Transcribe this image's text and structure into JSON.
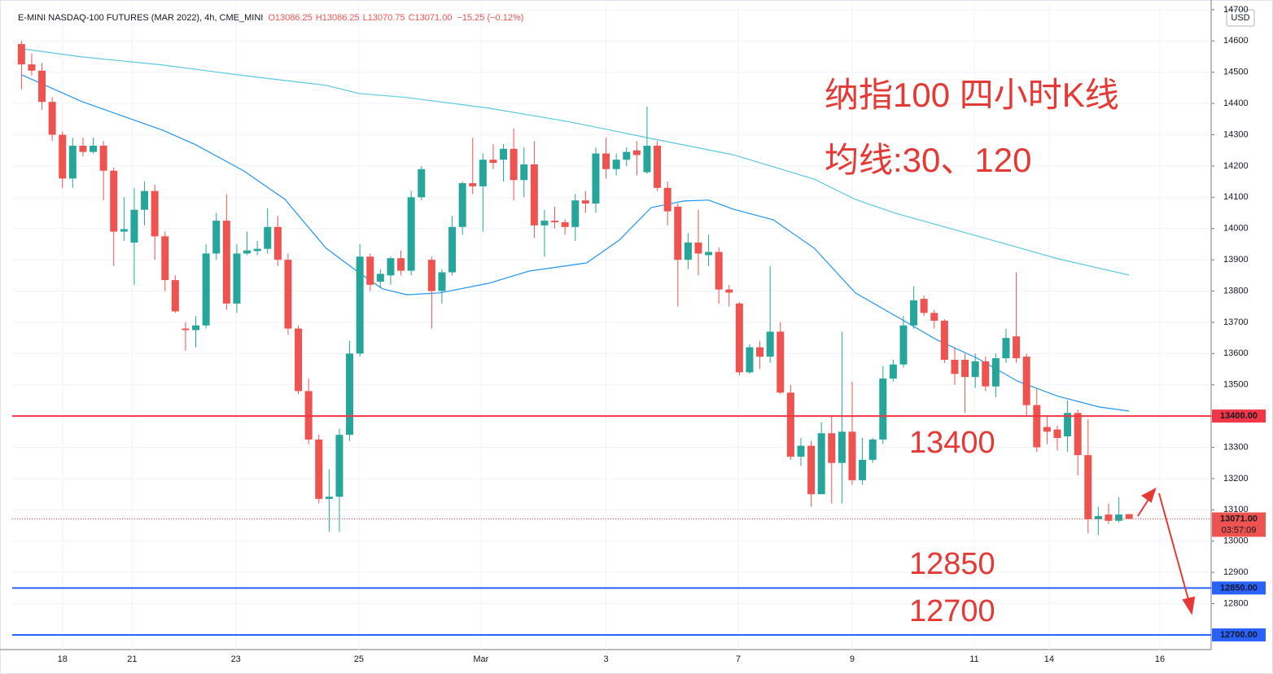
{
  "chart_data": {
    "type": "candlestick",
    "symbol": "E-MINI NASDAQ-100 FUTURES (MAR 2022), 4h, CME_MINI",
    "ohlc_header": [
      "O13086.25",
      "H13086.25",
      "L13070.75",
      "C13071.00",
      "−15.25 (−0.12%)"
    ],
    "title": "纳指100 四小时K线",
    "subtitle": "均线:30、120",
    "currency": "USD",
    "up_color": "#26a69a",
    "down_color": "#ef5350",
    "open": [
      14590,
      14525,
      14505,
      14405,
      14300,
      14160,
      14265,
      14245,
      14265,
      14185,
      13990,
      13955,
      14060,
      14120,
      13975,
      13835,
      13680,
      13675,
      13690,
      13920,
      14025,
      13760,
      13920,
      13928,
      13935,
      14005,
      13900,
      13680,
      13480,
      13325,
      13135,
      13142,
      13340,
      13600,
      13910,
      13830,
      13850,
      13905,
      13865,
      14100,
      13900,
      13800,
      13860,
      14005,
      14145,
      14135,
      14220,
      14220,
      14255,
      14155,
      14205,
      14010,
      14025,
      14020,
      14005,
      14090,
      14080,
      14240,
      14190,
      14220,
      14250,
      14180,
      14265,
      14130,
      14070,
      13900,
      13955,
      13915,
      13925,
      13805,
      13760,
      13540,
      13620,
      13590,
      13670,
      13475,
      13270,
      13305,
      13150,
      13345,
      13250,
      13350,
      13195,
      13260,
      13325,
      13520,
      13565,
      13690,
      13775,
      13730,
      13705,
      13580,
      13580,
      13525,
      13575,
      13495,
      13585,
      13655,
      13590,
      13435,
      13365,
      13357,
      13335,
      13410,
      13275,
      13070,
      13085,
      13065,
      13086.25
    ],
    "high": [
      14600,
      14560,
      14530,
      14420,
      14310,
      14290,
      14290,
      14290,
      14280,
      14195,
      14100,
      14130,
      14150,
      14140,
      13990,
      13850,
      13700,
      13720,
      13950,
      14050,
      14110,
      13950,
      13990,
      13960,
      14065,
      14040,
      13920,
      13690,
      13520,
      13340,
      13230,
      13360,
      13640,
      13950,
      13920,
      13870,
      13910,
      13930,
      14120,
      14200,
      13910,
      13870,
      14040,
      14150,
      14290,
      14240,
      14270,
      14270,
      14320,
      14260,
      14280,
      14060,
      14070,
      14030,
      14110,
      14120,
      14260,
      14290,
      14240,
      14260,
      14280,
      14390,
      14280,
      14150,
      14080,
      13985,
      14060,
      13980,
      13940,
      13820,
      13765,
      13630,
      13640,
      13880,
      13700,
      13500,
      13330,
      13320,
      13380,
      13400,
      13670,
      13510,
      13330,
      13330,
      13560,
      13580,
      13720,
      13815,
      13785,
      13740,
      13710,
      13620,
      13600,
      13600,
      13590,
      13600,
      13680,
      13860,
      13600,
      13490,
      13400,
      13370,
      13450,
      13420,
      13390,
      13110,
      13120,
      13140,
      13086.25
    ],
    "low": [
      14445,
      14490,
      14380,
      14280,
      14130,
      14130,
      14230,
      14240,
      14090,
      13880,
      13960,
      13820,
      14010,
      13900,
      13800,
      13730,
      13610,
      13620,
      13680,
      13900,
      13740,
      13730,
      13915,
      13915,
      13920,
      13880,
      13660,
      13470,
      13310,
      13120,
      13030,
      13030,
      13320,
      13590,
      13800,
      13810,
      13820,
      13850,
      13850,
      14090,
      13680,
      13760,
      13850,
      13980,
      14110,
      13990,
      14190,
      14150,
      14090,
      14100,
      13970,
      13910,
      14000,
      13980,
      13960,
      14050,
      14050,
      14160,
      14170,
      14200,
      14170,
      14175,
      14120,
      14010,
      13750,
      13870,
      13850,
      13880,
      13760,
      13750,
      13530,
      13535,
      13550,
      13570,
      13470,
      13260,
      13240,
      13110,
      13150,
      13120,
      13120,
      13180,
      13180,
      13250,
      13310,
      13510,
      13555,
      13680,
      13720,
      13680,
      13570,
      13500,
      13410,
      13490,
      13480,
      13460,
      13570,
      13570,
      13400,
      13285,
      13310,
      13290,
      13285,
      13210,
      13025,
      13020,
      13055,
      13060,
      13070.75
    ],
    "close": [
      14525,
      14505,
      14405,
      14300,
      14160,
      14265,
      14245,
      14265,
      14185,
      13990,
      13998,
      14060,
      14120,
      13975,
      13835,
      13735,
      13675,
      13690,
      13920,
      14025,
      13760,
      13920,
      13930,
      13935,
      14005,
      13900,
      13680,
      13480,
      13325,
      13135,
      13142,
      13340,
      13600,
      13910,
      13820,
      13855,
      13905,
      13865,
      14100,
      14190,
      13800,
      13860,
      14005,
      14145,
      14135,
      14220,
      14210,
      14255,
      14155,
      14205,
      14010,
      14025,
      14020,
      14005,
      14090,
      14080,
      14240,
      14190,
      14220,
      14245,
      14235,
      14265,
      14130,
      14055,
      13900,
      13955,
      13920,
      13925,
      13805,
      13795,
      13540,
      13620,
      13590,
      13670,
      13475,
      13270,
      13305,
      13150,
      13345,
      13250,
      13350,
      13195,
      13260,
      13325,
      13520,
      13565,
      13690,
      13770,
      13730,
      13705,
      13580,
      13535,
      13525,
      13575,
      13495,
      13585,
      13650,
      13585,
      13435,
      13300,
      13350,
      13330,
      13410,
      13275,
      13070,
      13080,
      13065,
      13085,
      13071
    ],
    "series": [
      {
        "color": "#5bc8e0",
        "x": [
          0,
          5.9,
          13.8,
          21.7,
          29.7,
          32.9,
          37.6,
          45.6,
          53.5,
          61.4,
          69.4,
          77.3,
          81.3,
          85.2,
          93.2,
          101.1,
          108
        ],
        "values": [
          14575,
          14549,
          14523,
          14489,
          14458,
          14432,
          14419,
          14385,
          14341,
          14288,
          14236,
          14158,
          14093,
          14049,
          13976,
          13903,
          13851
        ]
      },
      {
        "color": "#2196f3",
        "x": [
          0,
          5.9,
          13.8,
          17,
          21.7,
          25.7,
          29.7,
          32.9,
          35.2,
          37.6,
          40.8,
          45.6,
          49.5,
          55.1,
          58.3,
          61.4,
          64.6,
          67,
          69.4,
          73.3,
          77.3,
          81.3,
          85.2,
          89.2,
          93.2,
          97.1,
          101.1,
          105.1,
          108
        ],
        "values": [
          14492,
          14406,
          14314,
          14268,
          14184,
          14093,
          13937,
          13859,
          13807,
          13788,
          13794,
          13825,
          13864,
          13890,
          13963,
          14067,
          14088,
          14091,
          14062,
          14028,
          13937,
          13794,
          13721,
          13645,
          13585,
          13512,
          13463,
          13429,
          13416
        ]
      }
    ],
    "levels": [
      {
        "value": 13400,
        "label": "13400.00",
        "color": "#f23645"
      },
      {
        "value": 12850,
        "label": "12850.00",
        "color": "#2962ff"
      },
      {
        "value": 12700,
        "label": "12700.00",
        "color": "#2962ff"
      }
    ],
    "last": {
      "value": 13071,
      "label": "13071.00",
      "countdown": "03:57:09",
      "color": "#ef5350"
    },
    "annotations": [
      "13400",
      "12850",
      "12700"
    ],
    "ylim": [
      12653,
      14718
    ],
    "yticks": [
      12800,
      12900,
      13000,
      13100,
      13200,
      13300,
      13400,
      13500,
      13600,
      13700,
      13800,
      13900,
      14000,
      14100,
      14200,
      14300,
      14400,
      14500,
      14600,
      14700
    ],
    "xlim": [
      -0.9,
      116
    ],
    "xticks": [
      {
        "value": 4.0,
        "label": "18"
      },
      {
        "value": 10.8,
        "label": "21"
      },
      {
        "value": 20.9,
        "label": "23"
      },
      {
        "value": 32.9,
        "label": "25"
      },
      {
        "value": 44.8,
        "label": "Mar"
      },
      {
        "value": 57.0,
        "label": "3"
      },
      {
        "value": 69.9,
        "label": "7"
      },
      {
        "value": 81.0,
        "label": "9"
      },
      {
        "value": 92.9,
        "label": "11"
      },
      {
        "value": 100.2,
        "label": "14"
      },
      {
        "value": 111.0,
        "label": "16"
      }
    ]
  }
}
